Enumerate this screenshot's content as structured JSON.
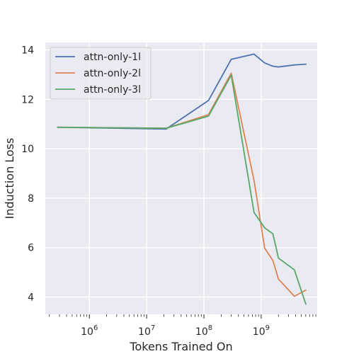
{
  "chart_data": {
    "type": "line",
    "xlabel": "Tokens Trained On",
    "ylabel": "Induction Loss",
    "xscale": "log",
    "xlim": [
      170000,
      9500000000
    ],
    "ylim": [
      3.3,
      14.3
    ],
    "grid": true,
    "legend_position": "top-left",
    "x_ticks": [
      {
        "value": 1000000,
        "base": "10",
        "exp": "6"
      },
      {
        "value": 10000000,
        "base": "10",
        "exp": "7"
      },
      {
        "value": 100000000,
        "base": "10",
        "exp": "8"
      },
      {
        "value": 1000000000,
        "base": "10",
        "exp": "9"
      }
    ],
    "y_ticks": [
      4,
      6,
      8,
      10,
      12,
      14
    ],
    "series": [
      {
        "name": "attn-only-1l",
        "color": "#4c72b0",
        "points": [
          [
            280000,
            10.87
          ],
          [
            22000000,
            10.8
          ],
          [
            120000000,
            11.95
          ],
          [
            300000000,
            13.62
          ],
          [
            750000000,
            13.83
          ],
          [
            1150000000,
            13.47
          ],
          [
            1600000000,
            13.34
          ],
          [
            2000000000,
            13.31
          ],
          [
            3800000000,
            13.39
          ],
          [
            6000000000,
            13.42
          ]
        ]
      },
      {
        "name": "attn-only-2l",
        "color": "#dd8452",
        "points": [
          [
            280000,
            10.87
          ],
          [
            22000000,
            10.83
          ],
          [
            120000000,
            11.38
          ],
          [
            300000000,
            13.06
          ],
          [
            750000000,
            8.72
          ],
          [
            1150000000,
            5.98
          ],
          [
            1600000000,
            5.48
          ],
          [
            2000000000,
            4.73
          ],
          [
            3800000000,
            4.03
          ],
          [
            6000000000,
            4.28
          ]
        ]
      },
      {
        "name": "attn-only-3l",
        "color": "#55a868",
        "points": [
          [
            280000,
            10.87
          ],
          [
            22000000,
            10.83
          ],
          [
            120000000,
            11.32
          ],
          [
            300000000,
            12.98
          ],
          [
            750000000,
            7.42
          ],
          [
            1150000000,
            6.8
          ],
          [
            1600000000,
            6.56
          ],
          [
            2000000000,
            5.58
          ],
          [
            3800000000,
            5.1
          ],
          [
            6000000000,
            3.72
          ]
        ]
      }
    ]
  }
}
